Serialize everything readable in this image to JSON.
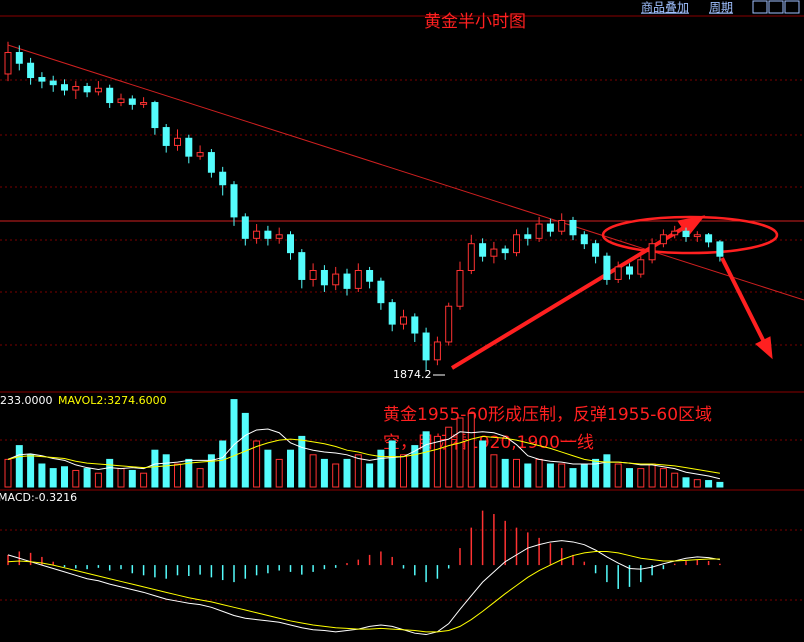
{
  "top_menu": [
    "商品叠加",
    "周期"
  ],
  "chart_data": [
    {
      "type": "candlestick",
      "title": "黄金半小时图",
      "annotation_lines": [
        "黄金1955-60形成压制，反弹1955-60区域",
        "空，目标看1920,1900一线"
      ],
      "low_label": 1874.2,
      "up_color": "#ff3232",
      "down_color": "#54fcfc",
      "ylim": [
        1862,
        2073
      ],
      "open": [
        2040,
        2052,
        2046,
        2038,
        2036,
        2034,
        2031,
        2033,
        2030,
        2032,
        2024,
        2026,
        2023,
        2024,
        2010,
        2000,
        2004,
        1994,
        1996,
        1985,
        1978,
        1960,
        1948,
        1952,
        1948,
        1950,
        1940,
        1925,
        1930,
        1922,
        1928,
        1920,
        1930,
        1924,
        1912,
        1900,
        1904,
        1895,
        1880,
        1890,
        1910,
        1930,
        1945,
        1938,
        1942,
        1940,
        1950,
        1948,
        1956,
        1952,
        1958,
        1950,
        1945,
        1938,
        1925,
        1932,
        1928,
        1936,
        1945,
        1950,
        1952,
        1949,
        1950,
        1946
      ],
      "high": [
        2058,
        2056,
        2049,
        2041,
        2039,
        2037,
        2036,
        2035,
        2036,
        2034,
        2029,
        2028,
        2027,
        2025,
        2012,
        2009,
        2006,
        2000,
        1998,
        1988,
        1980,
        1962,
        1956,
        1955,
        1954,
        1952,
        1942,
        1934,
        1933,
        1932,
        1931,
        1934,
        1932,
        1926,
        1914,
        1908,
        1906,
        1898,
        1893,
        1912,
        1935,
        1950,
        1948,
        1946,
        1944,
        1953,
        1954,
        1960,
        1959,
        1962,
        1960,
        1952,
        1947,
        1940,
        1935,
        1934,
        1938,
        1948,
        1953,
        1955,
        1954,
        1952,
        1951,
        1947
      ],
      "low": [
        2036,
        2042,
        2034,
        2032,
        2030,
        2028,
        2026,
        2027,
        2028,
        2021,
        2022,
        2020,
        2021,
        2006,
        1996,
        1997,
        1990,
        1992,
        1982,
        1972,
        1955,
        1944,
        1945,
        1944,
        1945,
        1936,
        1920,
        1921,
        1918,
        1919,
        1916,
        1918,
        1920,
        1908,
        1896,
        1897,
        1890,
        1874.2,
        1877,
        1888,
        1908,
        1928,
        1935,
        1934,
        1936,
        1938,
        1944,
        1946,
        1949,
        1950,
        1947,
        1942,
        1934,
        1922,
        1923,
        1925,
        1926,
        1934,
        1943,
        1948,
        1946,
        1946,
        1943,
        1935
      ],
      "close": [
        2052,
        2046,
        2038,
        2036,
        2034,
        2031,
        2033,
        2030,
        2032,
        2024,
        2026,
        2023,
        2024,
        2010,
        2000,
        2004,
        1994,
        1996,
        1985,
        1978,
        1960,
        1948,
        1952,
        1948,
        1950,
        1940,
        1925,
        1930,
        1922,
        1928,
        1920,
        1930,
        1924,
        1912,
        1900,
        1904,
        1895,
        1880,
        1890,
        1910,
        1930,
        1945,
        1938,
        1942,
        1940,
        1950,
        1948,
        1956,
        1952,
        1958,
        1950,
        1945,
        1938,
        1925,
        1932,
        1928,
        1936,
        1945,
        1950,
        1952,
        1949,
        1950,
        1946,
        1938
      ]
    },
    {
      "type": "volume",
      "header": [
        "233.0000",
        "MAVOL2:3274.6000"
      ],
      "header_colors": [
        "#ffffff",
        "#ffff00"
      ],
      "ylim": [
        0,
        10000
      ],
      "values": [
        3000,
        4500,
        3500,
        2500,
        2000,
        2200,
        1800,
        2000,
        1500,
        3000,
        2000,
        1800,
        1500,
        4000,
        3500,
        2500,
        3000,
        2000,
        3500,
        5000,
        9500,
        8000,
        5000,
        4000,
        3000,
        4000,
        5500,
        3500,
        3000,
        2500,
        3000,
        3500,
        2500,
        4000,
        5000,
        3500,
        4500,
        6000,
        5500,
        6500,
        7500,
        8000,
        5000,
        3500,
        3000,
        3000,
        2500,
        3000,
        2500,
        2500,
        2000,
        2500,
        3000,
        3500,
        2500,
        2000,
        2000,
        2500,
        2000,
        1500,
        1000,
        800,
        700,
        500
      ],
      "series": [
        {
          "color": "#ffffff",
          "values": [
            3000,
            3500,
            3600,
            3400,
            3100,
            2900,
            2400,
            2100,
            1900,
            2100,
            2000,
            2100,
            2000,
            2500,
            2600,
            2700,
            2900,
            2900,
            2900,
            3200,
            4600,
            5600,
            6200,
            6300,
            5900,
            4800,
            4300,
            4000,
            3800,
            3700,
            3500,
            3100,
            2900,
            3100,
            3200,
            3300,
            3900,
            4600,
            4900,
            5200,
            6000,
            5900,
            6000,
            5900,
            5500,
            4600,
            3400,
            3000,
            2800,
            2700,
            2500,
            2500,
            2500,
            2700,
            2700,
            2600,
            2400,
            2400,
            2200,
            2000,
            1600,
            1400,
            1200,
            900
          ]
        },
        {
          "color": "#ffff00",
          "values": [
            3000,
            3300,
            3400,
            3300,
            3200,
            3100,
            2800,
            2600,
            2500,
            2400,
            2300,
            2200,
            2100,
            2200,
            2300,
            2400,
            2600,
            2700,
            2800,
            2900,
            3400,
            3900,
            4400,
            4800,
            5100,
            5200,
            5100,
            4900,
            4700,
            4400,
            4000,
            3800,
            3500,
            3300,
            3300,
            3300,
            3500,
            3800,
            4100,
            4500,
            4800,
            5200,
            5500,
            5400,
            5300,
            5100,
            4800,
            4500,
            4200,
            3800,
            3400,
            3000,
            2800,
            2700,
            2700,
            2600,
            2500,
            2500,
            2400,
            2300,
            2100,
            1900,
            1700,
            1500
          ]
        }
      ]
    },
    {
      "type": "macd",
      "header": "MACD:-0.3216",
      "ylim": [
        -11,
        10
      ],
      "values": [
        1.5,
        2,
        1.8,
        1.2,
        0.5,
        -0.3,
        -0.5,
        -0.6,
        -0.4,
        -0.8,
        -0.6,
        -1.2,
        -1.5,
        -1.8,
        -2,
        -1.5,
        -1.6,
        -1.4,
        -1.8,
        -2.2,
        -2.5,
        -2,
        -1.5,
        -1.2,
        -0.8,
        -1,
        -1.4,
        -1,
        -0.6,
        -0.4,
        0.3,
        0.8,
        1.5,
        2,
        1.2,
        -0.5,
        -1.5,
        -2.5,
        -2,
        -0.5,
        2.5,
        5.5,
        8,
        7.5,
        6.5,
        5.5,
        4.8,
        4,
        3.2,
        2.5,
        1.5,
        0.5,
        -1.2,
        -2.5,
        -3.5,
        -3.2,
        -2.5,
        -1.5,
        -0.6,
        0.2,
        0.6,
        0.8,
        0.6,
        0.2
      ],
      "series": [
        {
          "color": "#ffffff",
          "values": [
            1.5,
            1,
            0.5,
            0,
            -0.5,
            -1,
            -1.5,
            -2,
            -2.3,
            -2.8,
            -3.2,
            -3.6,
            -4,
            -4.5,
            -5,
            -5.3,
            -5.6,
            -5.8,
            -6.2,
            -6.8,
            -7.4,
            -7.8,
            -8,
            -8.2,
            -8.4,
            -8.8,
            -9.2,
            -9.5,
            -9.6,
            -9.8,
            -9.6,
            -9.4,
            -9,
            -8.8,
            -9,
            -9.5,
            -10,
            -10.2,
            -9.8,
            -8.6,
            -6.5,
            -4.5,
            -2.5,
            -1,
            0.5,
            1.5,
            2.5,
            3,
            3.4,
            3.6,
            3.4,
            3,
            2.2,
            1.2,
            0.3,
            -0.5,
            -0.6,
            -0.3,
            0.2,
            0.6,
            1,
            1.2,
            1.1,
            0.8
          ]
        },
        {
          "color": "#ffff00",
          "values": [
            0.5,
            0.6,
            0.5,
            0.3,
            0,
            -0.4,
            -0.8,
            -1.2,
            -1.6,
            -2,
            -2.4,
            -2.8,
            -3.2,
            -3.6,
            -4,
            -4.4,
            -4.8,
            -5.1,
            -5.4,
            -5.8,
            -6.2,
            -6.6,
            -7,
            -7.4,
            -7.8,
            -8.2,
            -8.5,
            -8.8,
            -9,
            -9.2,
            -9.3,
            -9.4,
            -9.4,
            -9.3,
            -9.4,
            -9.5,
            -9.6,
            -9.8,
            -9.8,
            -9.6,
            -9,
            -8,
            -6.8,
            -5.5,
            -4.2,
            -3,
            -1.8,
            -0.8,
            0,
            0.8,
            1.4,
            1.8,
            2,
            2,
            1.8,
            1.4,
            1,
            0.8,
            0.6,
            0.6,
            0.7,
            0.8,
            0.9,
            0.9
          ]
        }
      ]
    }
  ]
}
